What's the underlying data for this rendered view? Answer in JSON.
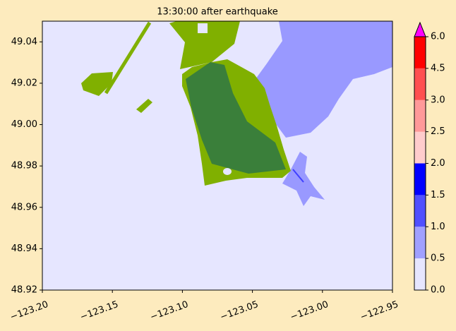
{
  "chart_data": {
    "type": "map",
    "title": "13:30:00 after earthquake",
    "xlim": [
      -123.2,
      -122.95
    ],
    "xticks": [
      {
        "value": -123.2,
        "label": "−123.20"
      },
      {
        "value": -123.15,
        "label": "−123.15"
      },
      {
        "value": -123.1,
        "label": "−123.10"
      },
      {
        "value": -123.05,
        "label": "−123.05"
      },
      {
        "value": -123.0,
        "label": "−123.00"
      },
      {
        "value": -122.95,
        "label": "−122.95"
      }
    ],
    "ylim": [
      48.92,
      49.05
    ],
    "yticks": [
      48.92,
      48.94,
      48.96,
      48.98,
      {
        "value": 49.0,
        "label": "49.00"
      },
      49.02,
      49.04
    ],
    "colorbar": {
      "ticks": [
        {
          "value": 0,
          "label": "0.0"
        },
        0.5,
        {
          "value": 1,
          "label": "1.0"
        },
        1.5,
        {
          "value": 2,
          "label": "2.0"
        },
        2.5,
        {
          "value": 3,
          "label": "3.0"
        },
        4.5,
        {
          "value": 6,
          "label": "6.0"
        }
      ],
      "colors": [
        "#e6e6ff",
        "#a0a0ff",
        "#5050ff",
        "#0000ff",
        "#ffcccc",
        "#ff9999",
        "#ff5050",
        "#ff0000"
      ],
      "extend_color": "#ff00ff"
    }
  }
}
